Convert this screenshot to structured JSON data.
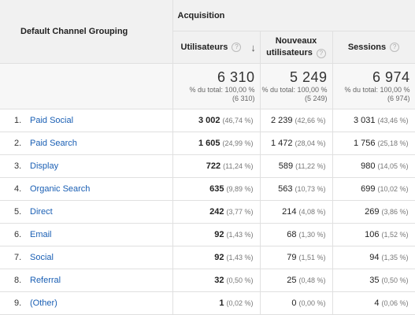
{
  "header": {
    "dimension": "Default Channel Grouping",
    "group": "Acquisition",
    "metrics": [
      {
        "label": "Utilisateurs"
      },
      {
        "label_line1": "Nouveaux",
        "label_line2": "utilisateurs"
      },
      {
        "label": "Sessions"
      }
    ],
    "help_glyph": "?",
    "sort_glyph": "↓"
  },
  "totals": [
    {
      "value": "6 310",
      "line1": "% du total: 100,00 %",
      "line2": "(6 310)"
    },
    {
      "value": "5 249",
      "line1": "% du total: 100,00 %",
      "line2": "(5 249)"
    },
    {
      "value": "6 974",
      "line1": "% du total: 100,00 %",
      "line2": "(6 974)"
    }
  ],
  "rows": [
    {
      "idx": "1.",
      "name": "Paid Social",
      "users": "3 002",
      "users_pct": "(46,74 %)",
      "new": "2 239",
      "new_pct": "(42,66 %)",
      "sess": "3 031",
      "sess_pct": "(43,46 %)"
    },
    {
      "idx": "2.",
      "name": "Paid Search",
      "users": "1 605",
      "users_pct": "(24,99 %)",
      "new": "1 472",
      "new_pct": "(28,04 %)",
      "sess": "1 756",
      "sess_pct": "(25,18 %)"
    },
    {
      "idx": "3.",
      "name": "Display",
      "users": "722",
      "users_pct": "(11,24 %)",
      "new": "589",
      "new_pct": "(11,22 %)",
      "sess": "980",
      "sess_pct": "(14,05 %)"
    },
    {
      "idx": "4.",
      "name": "Organic Search",
      "users": "635",
      "users_pct": "(9,89 %)",
      "new": "563",
      "new_pct": "(10,73 %)",
      "sess": "699",
      "sess_pct": "(10,02 %)"
    },
    {
      "idx": "5.",
      "name": "Direct",
      "users": "242",
      "users_pct": "(3,77 %)",
      "new": "214",
      "new_pct": "(4,08 %)",
      "sess": "269",
      "sess_pct": "(3,86 %)"
    },
    {
      "idx": "6.",
      "name": "Email",
      "users": "92",
      "users_pct": "(1,43 %)",
      "new": "68",
      "new_pct": "(1,30 %)",
      "sess": "106",
      "sess_pct": "(1,52 %)"
    },
    {
      "idx": "7.",
      "name": "Social",
      "users": "92",
      "users_pct": "(1,43 %)",
      "new": "79",
      "new_pct": "(1,51 %)",
      "sess": "94",
      "sess_pct": "(1,35 %)"
    },
    {
      "idx": "8.",
      "name": "Referral",
      "users": "32",
      "users_pct": "(0,50 %)",
      "new": "25",
      "new_pct": "(0,48 %)",
      "sess": "35",
      "sess_pct": "(0,50 %)"
    },
    {
      "idx": "9.",
      "name": "(Other)",
      "users": "1",
      "users_pct": "(0,02 %)",
      "new": "0",
      "new_pct": "(0,00 %)",
      "sess": "4",
      "sess_pct": "(0,06 %)"
    }
  ],
  "colors": {
    "link": "#1a5fb4",
    "header_bg": "#f1f1f1",
    "border": "#e0e0e0"
  }
}
